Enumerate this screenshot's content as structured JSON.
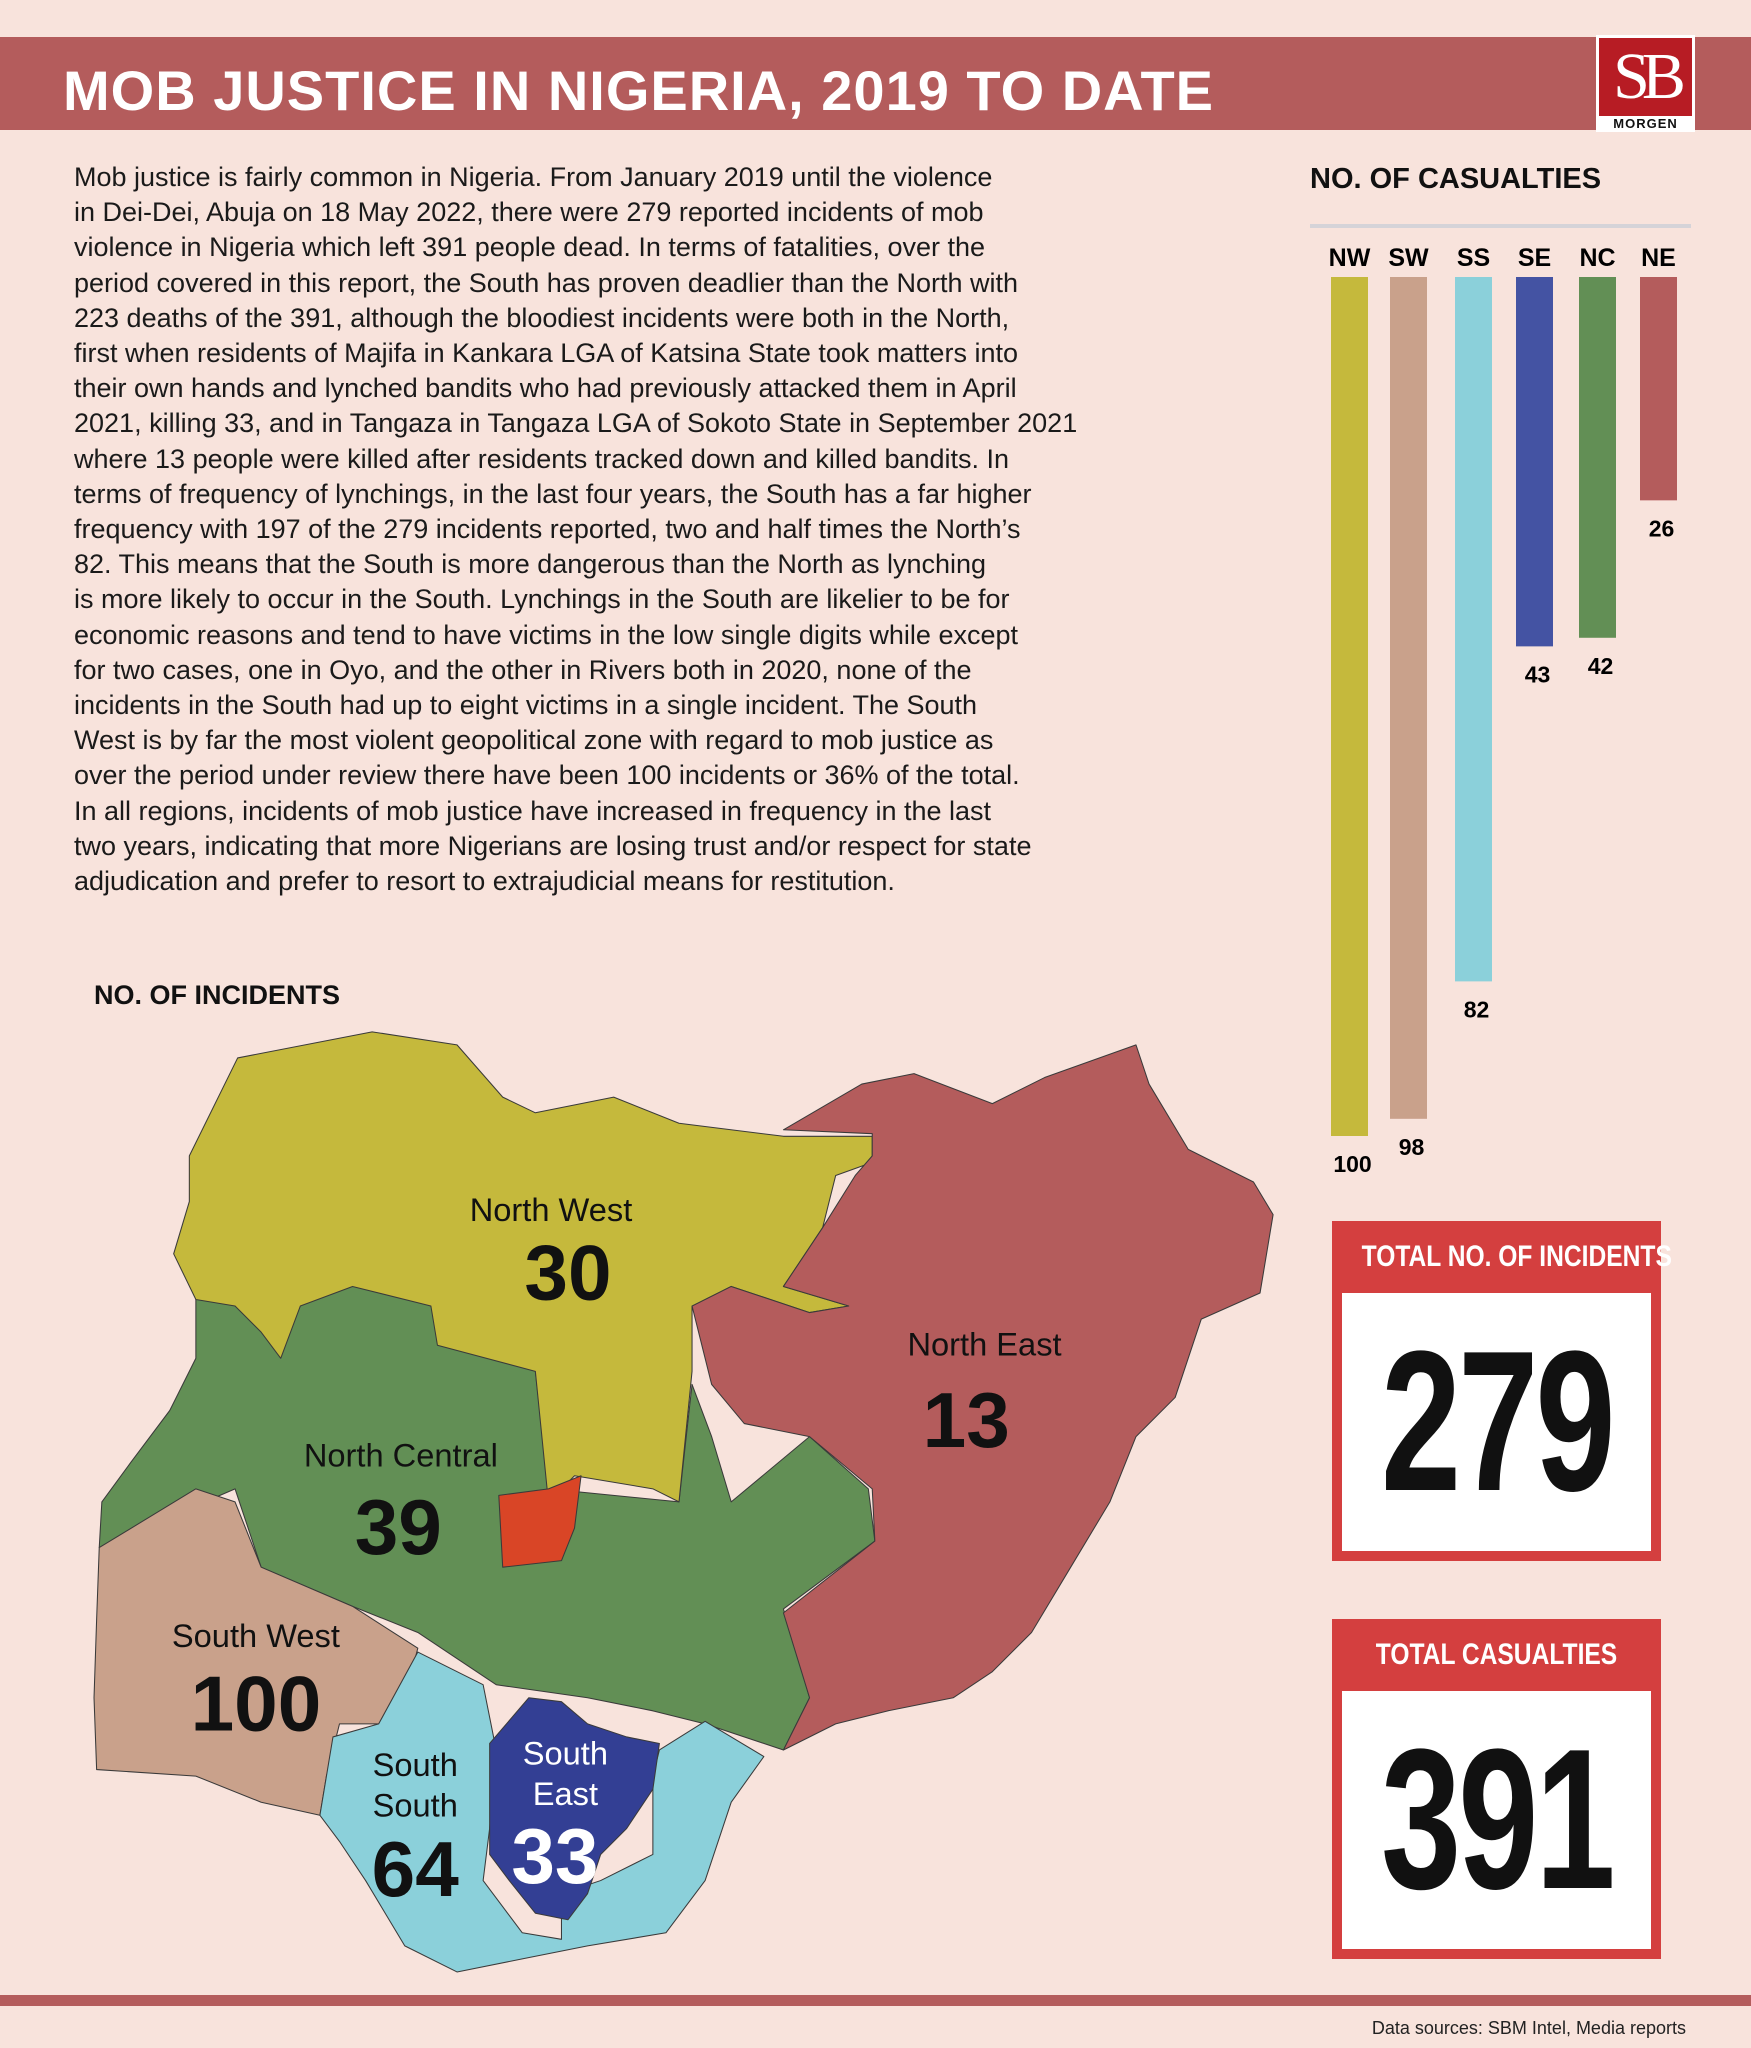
{
  "header": {
    "title": "MOB JUSTICE IN NIGERIA, 2019 TO DATE"
  },
  "logo": {
    "mark": "SB",
    "name": "MORGEN",
    "color": "#b71c24"
  },
  "body": {
    "lines": [
      "Mob justice is fairly common in Nigeria. From January 2019 until the violence",
      "in Dei-Dei, Abuja on 18 May 2022, there were 279 reported incidents of mob",
      "violence in Nigeria which left 391 people dead. In terms of fatalities, over the",
      "period covered in this report, the South has proven deadlier than the North with",
      "223 deaths of the 391, although the bloodiest incidents were both in the North,",
      "first when residents of Majifa in Kankara LGA of Katsina State took matters into",
      "their own hands and lynched bandits who had previously attacked them in April",
      "2021, killing 33, and in Tangaza in Tangaza LGA of Sokoto State in September 2021",
      "where 13 people were killed after residents tracked down and killed bandits. In",
      "terms of frequency of lynchings, in the last four years, the South has a far higher",
      "frequency with 197 of the 279 incidents reported, two and half times the North’s",
      "82. This means that the South is more dangerous than the North as lynching",
      "is more likely to occur in the South. Lynchings in the South are likelier to be for",
      "economic reasons and tend to have victims in the low single digits while except",
      "for two cases, one in Oyo, and the other in Rivers both in 2020, none of the",
      "incidents in the South had up to eight victims in a single incident. The South",
      "West is by far the most violent geopolitical zone with regard to mob justice as",
      "over the period under review there have been 100 incidents or 36% of the total.",
      "In all regions, incidents of mob justice have increased in frequency in the last",
      "two years, indicating that more Nigerians are losing trust and/or respect for state",
      "adjudication and prefer to resort to extrajudicial means for restitution."
    ]
  },
  "chart_data": {
    "type": "bar",
    "title": "NO. OF CASUALTIES",
    "categories": [
      "NW",
      "SW",
      "SS",
      "SE",
      "NC",
      "NE"
    ],
    "values": [
      100,
      98,
      82,
      43,
      42,
      26
    ],
    "colors": [
      "#c5b93c",
      "#c9a18b",
      "#8bd0da",
      "#4453a3",
      "#628f55",
      "#b45c5c"
    ],
    "orientation": "vertical-downward",
    "grid": false
  },
  "map": {
    "title": "NO. OF INCIDENTS",
    "regions": [
      {
        "name": "North West",
        "value": "30",
        "color": "#c5b93c"
      },
      {
        "name": "North East",
        "value": "13",
        "color": "#b45c5c"
      },
      {
        "name": "North Central",
        "value": "39",
        "color": "#628f55"
      },
      {
        "name": "South West",
        "value": "100",
        "color": "#c9a18b"
      },
      {
        "name_line1": "South",
        "name_line2": "South",
        "value": "64",
        "color": "#8bd0da"
      },
      {
        "name_line1": "South",
        "name_line2": "East",
        "value": "33",
        "color": "#333f94"
      }
    ],
    "fct_color": "#d94526"
  },
  "totals": {
    "incidents_label": "TOTAL NO. OF INCIDENTS",
    "incidents_value": "279",
    "casualties_label": "TOTAL CASUALTIES",
    "casualties_value": "391",
    "accent": "#d43f3f"
  },
  "footer": {
    "source": "Data sources: SBM Intel, Media reports"
  }
}
